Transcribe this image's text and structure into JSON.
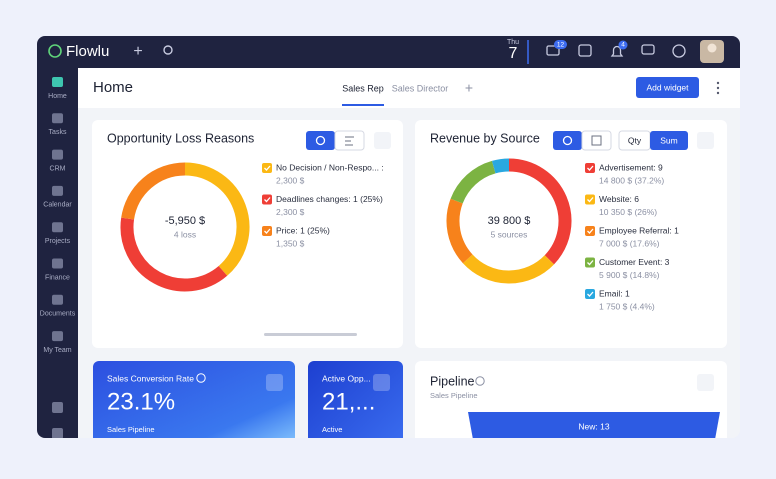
{
  "topbar": {
    "logo": "Flowlu",
    "day": "Thu",
    "date": "7",
    "mail_badge": "12",
    "bell_badge": "4"
  },
  "sidebar": {
    "items": [
      "Home",
      "Tasks",
      "CRM",
      "Calendar",
      "Projects",
      "Finance",
      "Documents",
      "My Team"
    ]
  },
  "header": {
    "title": "Home",
    "tabs": [
      "Sales Rep",
      "Sales Director"
    ],
    "button": "Add widget"
  },
  "widgets": {
    "loss": {
      "title": "Opportunity Loss Reasons",
      "center_value": "-5,950 $",
      "center_label": "4 loss",
      "legend": [
        {
          "text": "No Decision / Non-Respo... :",
          "detail": "2,300 $",
          "amount": 2300,
          "color": "#fbb814"
        },
        {
          "text": "Deadlines changes: 1 (25%)",
          "detail": "2,300 $",
          "amount": 2300,
          "color": "#ef3e36"
        },
        {
          "text": "Price: 1 (25%)",
          "detail": "1,350 $",
          "amount": 1350,
          "color": "#f7821b"
        }
      ]
    },
    "revenue": {
      "title": "Revenue by Source",
      "toggle": [
        "Qty",
        "Sum"
      ],
      "center_value": "39 800 $",
      "center_label": "5 sources",
      "legend": [
        {
          "text": "Advertisement: 9",
          "detail": "14 800 $ (37.2%)",
          "amount": 14800,
          "color": "#ef3e36"
        },
        {
          "text": "Website: 6",
          "detail": "10 350 $ (26%)",
          "amount": 10350,
          "color": "#fbb814"
        },
        {
          "text": "Employee Referral: 1",
          "detail": "7 000 $ (17.6%)",
          "amount": 7000,
          "color": "#f7821b"
        },
        {
          "text": "Customer Event: 3",
          "detail": "5 900 $ (14.8%)",
          "amount": 5900,
          "color": "#7cb342"
        },
        {
          "text": "Email: 1",
          "detail": "1 750 $ (4.4%)",
          "amount": 1750,
          "color": "#29a8e0"
        }
      ]
    },
    "conversion": {
      "title": "Sales Conversion Rate",
      "value": "23.1%",
      "footer": "Sales Pipeline"
    },
    "active": {
      "title": "Active Opp...",
      "value": "21,...",
      "footer": "Active"
    },
    "pipeline": {
      "title": "Pipeline",
      "subtitle": "Sales Pipeline",
      "stage": "New: 13"
    }
  }
}
